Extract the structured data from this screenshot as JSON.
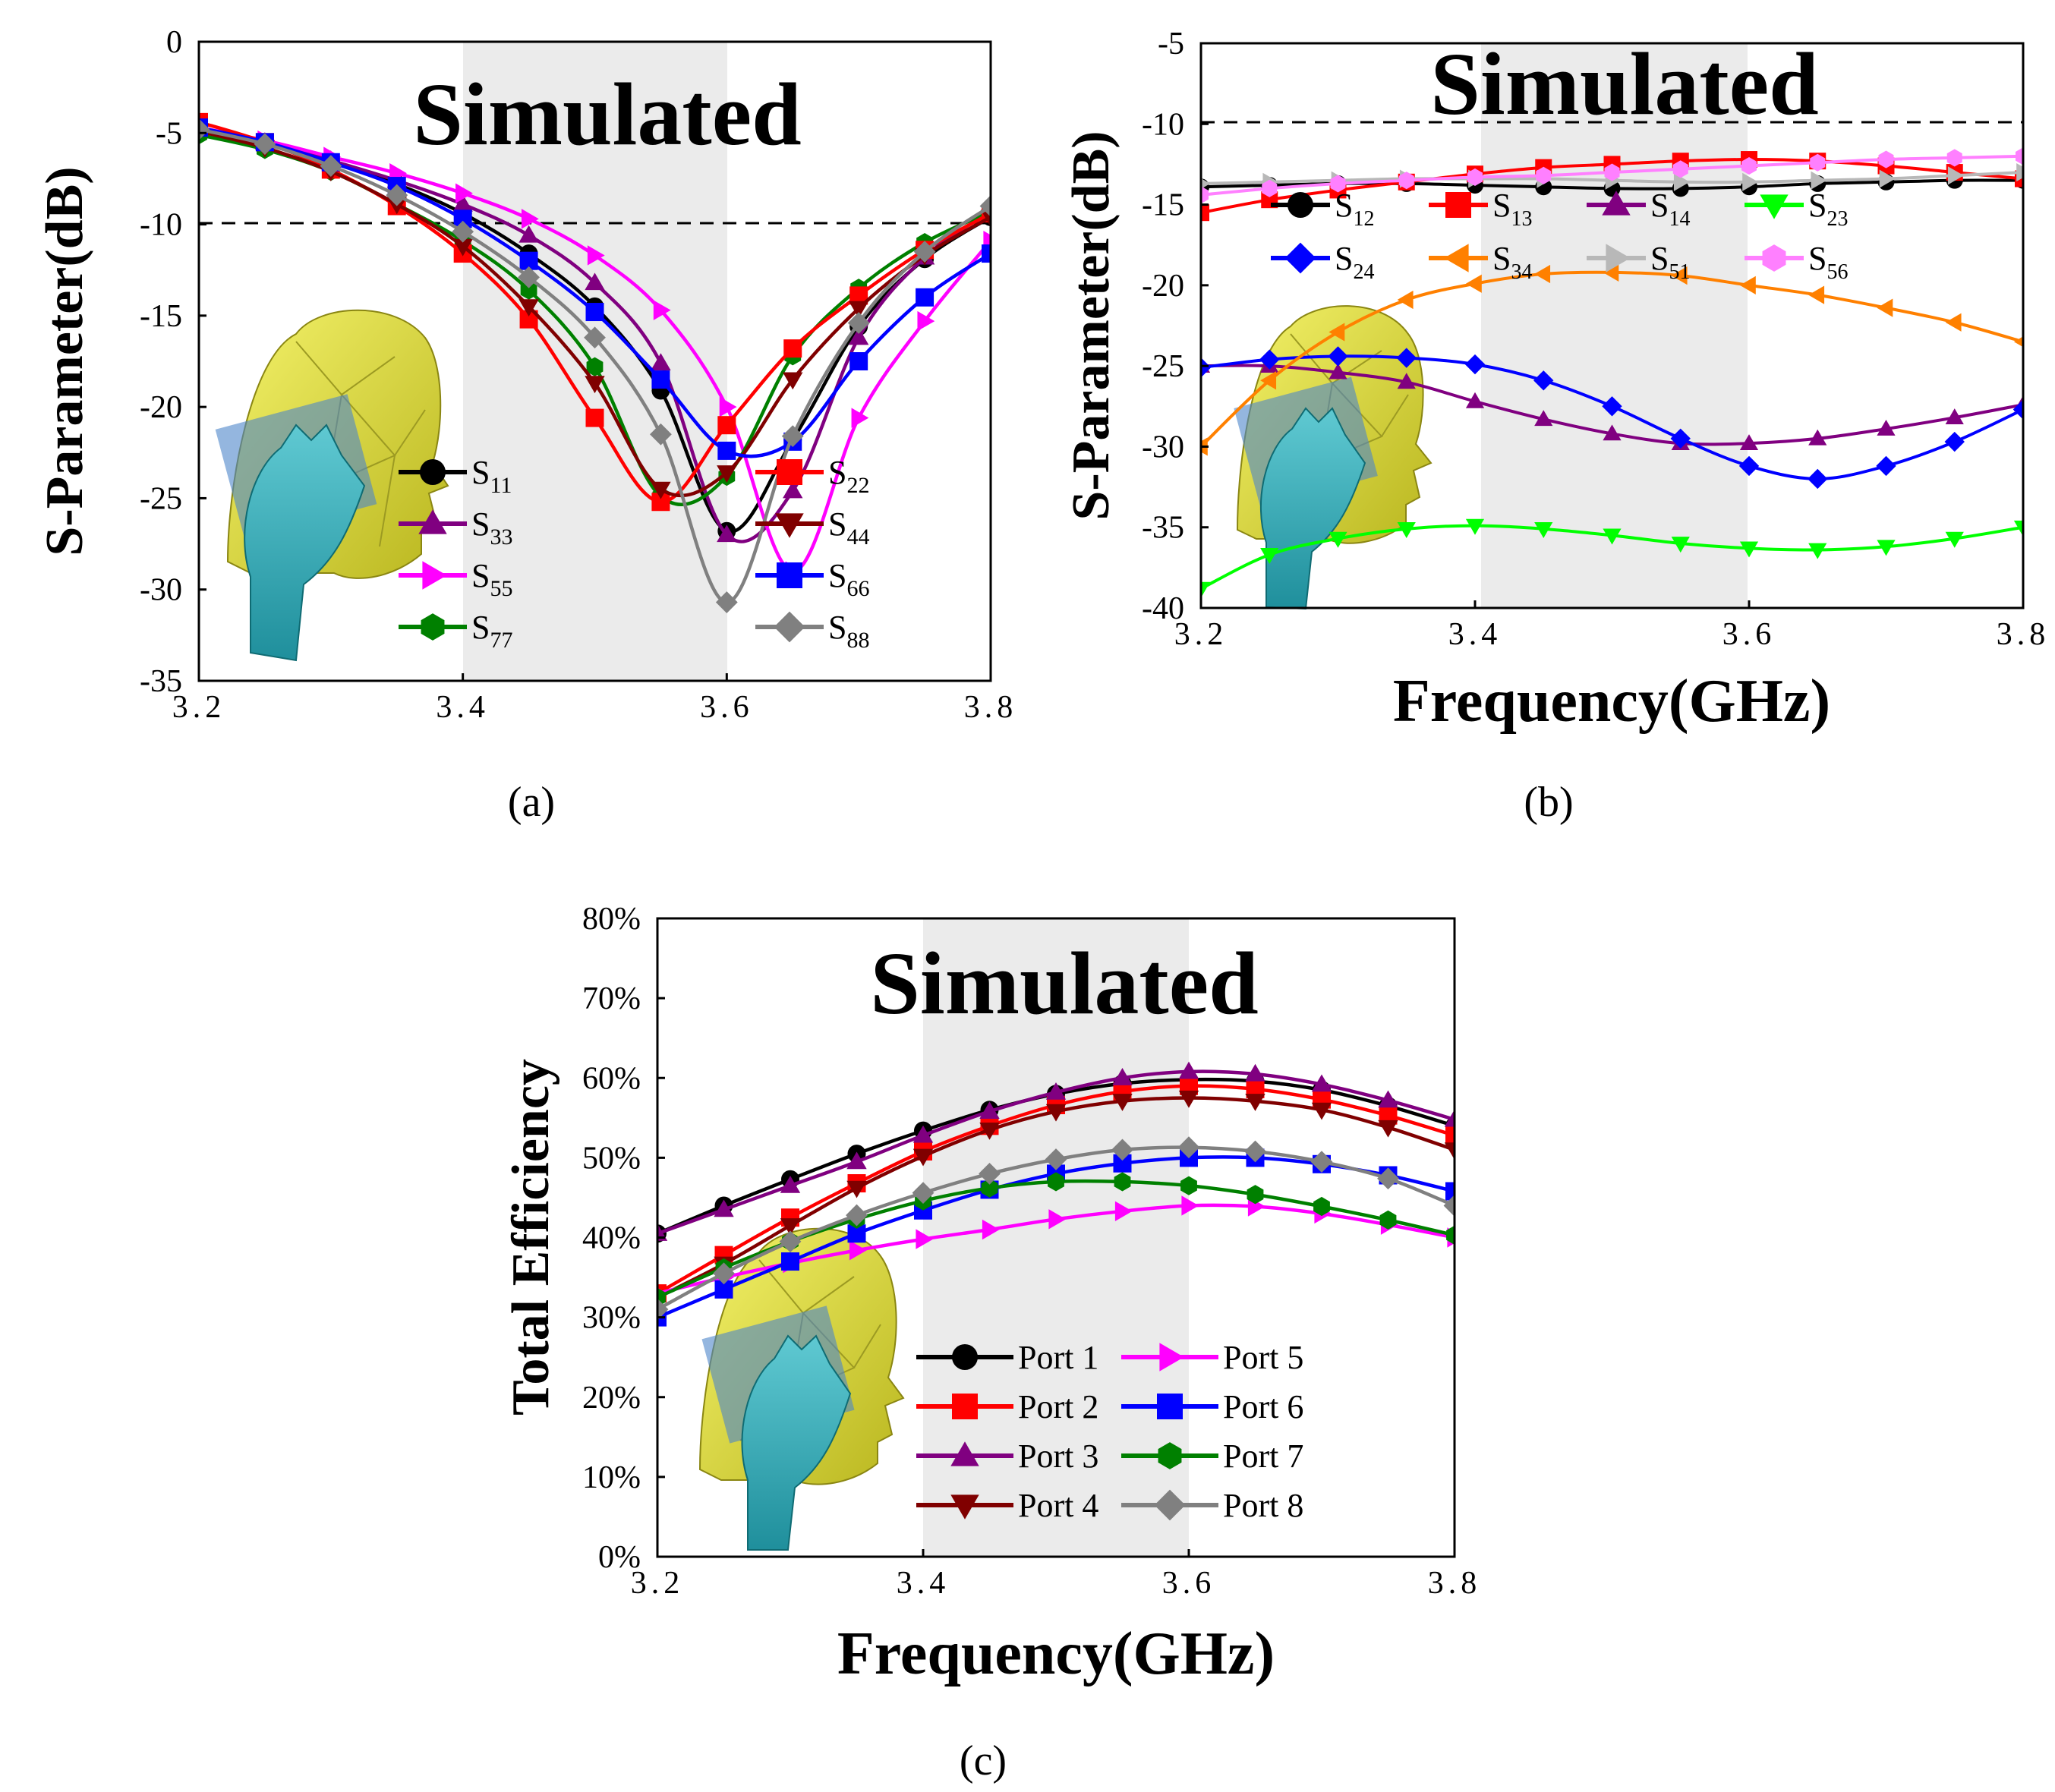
{
  "chart_data": [
    {
      "id": "a",
      "type": "line",
      "title": "Simulated",
      "caption": "(a)",
      "xlabel": "",
      "ylabel": "S-Parameter(dB)",
      "xlim": [
        3.2,
        3.8
      ],
      "ylim": [
        -35,
        0
      ],
      "xticks": [
        3.2,
        3.4,
        3.6,
        3.8
      ],
      "xtick_labels": [
        "3.2",
        "3.4",
        "3.6",
        "3.8"
      ],
      "yticks": [
        0,
        -5,
        -10,
        -15,
        -20,
        -25,
        -30,
        -35
      ],
      "ytick_labels": [
        "0",
        "-5",
        "-10",
        "-15",
        "-20",
        "-25",
        "-30",
        "-35"
      ],
      "band": [
        3.4,
        3.6
      ],
      "threshold": -10,
      "legend_position": "bottom-right",
      "legend_columns": 2,
      "x": [
        3.2,
        3.25,
        3.3,
        3.35,
        3.4,
        3.45,
        3.5,
        3.55,
        3.6,
        3.65,
        3.7,
        3.75,
        3.8
      ],
      "series": [
        {
          "name": "S",
          "sub": "11",
          "color": "#000000",
          "marker": "circle",
          "values": [
            -4.8,
            -5.5,
            -6.6,
            -7.8,
            -9.4,
            -11.6,
            -14.5,
            -19.1,
            -26.8,
            -21.8,
            -15.6,
            -11.9,
            -9.6
          ]
        },
        {
          "name": "S",
          "sub": "33",
          "color": "#800080",
          "marker": "triangle-up",
          "values": [
            -4.9,
            -5.5,
            -6.5,
            -7.6,
            -8.9,
            -10.6,
            -13.2,
            -17.6,
            -27.0,
            -24.6,
            -16.2,
            -11.8,
            -9.3
          ]
        },
        {
          "name": "S",
          "sub": "55",
          "color": "#ff00ff",
          "marker": "triangle-right",
          "values": [
            -4.7,
            -5.4,
            -6.3,
            -7.2,
            -8.3,
            -9.7,
            -11.7,
            -14.7,
            -20.0,
            -29.0,
            -20.6,
            -15.3,
            -10.9
          ]
        },
        {
          "name": "S",
          "sub": "77",
          "color": "#008000",
          "marker": "hexagon",
          "values": [
            -5.1,
            -5.9,
            -7.1,
            -8.9,
            -10.9,
            -13.6,
            -17.8,
            -24.9,
            -23.8,
            -17.2,
            -13.5,
            -11.0,
            -9.3
          ]
        },
        {
          "name": "S",
          "sub": "22",
          "color": "#ff0000",
          "marker": "square",
          "values": [
            -4.4,
            -5.5,
            -7.0,
            -9.0,
            -11.6,
            -15.2,
            -20.6,
            -25.2,
            -21.0,
            -16.8,
            -13.9,
            -11.4,
            -9.4
          ]
        },
        {
          "name": "S",
          "sub": "44",
          "color": "#800000",
          "marker": "triangle-down",
          "values": [
            -4.9,
            -5.8,
            -7.1,
            -8.9,
            -11.2,
            -14.5,
            -18.7,
            -24.5,
            -23.6,
            -18.5,
            -14.6,
            -11.7,
            -9.6
          ]
        },
        {
          "name": "S",
          "sub": "66",
          "color": "#0000ff",
          "marker": "square",
          "values": [
            -4.7,
            -5.5,
            -6.6,
            -7.9,
            -9.7,
            -12.0,
            -14.8,
            -18.5,
            -22.4,
            -21.9,
            -17.5,
            -14.0,
            -11.6
          ]
        },
        {
          "name": "S",
          "sub": "88",
          "color": "#808080",
          "marker": "diamond",
          "values": [
            -4.8,
            -5.6,
            -6.8,
            -8.4,
            -10.4,
            -12.9,
            -16.2,
            -21.5,
            -30.7,
            -21.6,
            -15.4,
            -11.5,
            -9.0
          ]
        }
      ]
    },
    {
      "id": "b",
      "type": "line",
      "title": "Simulated",
      "caption": "(b)",
      "xlabel": "Frequency(GHz)",
      "ylabel": "S-Parameter(dB)",
      "xlim": [
        3.2,
        3.8
      ],
      "ylim": [
        -40,
        -5
      ],
      "xticks": [
        3.2,
        3.4,
        3.6,
        3.8
      ],
      "xtick_labels": [
        "3.2",
        "3.4",
        "3.6",
        "3.8"
      ],
      "yticks": [
        -5,
        -10,
        -15,
        -20,
        -25,
        -30,
        -35,
        -40
      ],
      "ytick_labels": [
        "-5",
        "-10",
        "-15",
        "-20",
        "-25",
        "-30",
        "-35",
        "-40"
      ],
      "band": [
        3.4,
        3.6
      ],
      "threshold": -10,
      "legend_position": "top",
      "legend_columns": 4,
      "x": [
        3.2,
        3.25,
        3.3,
        3.35,
        3.4,
        3.45,
        3.5,
        3.55,
        3.6,
        3.65,
        3.7,
        3.75,
        3.8
      ],
      "series": [
        {
          "name": "S",
          "sub": "12",
          "color": "#000000",
          "marker": "circle",
          "values": [
            -13.9,
            -13.8,
            -13.7,
            -13.7,
            -13.8,
            -13.9,
            -14.0,
            -14.0,
            -13.9,
            -13.7,
            -13.6,
            -13.5,
            -13.5
          ]
        },
        {
          "name": "S",
          "sub": "13",
          "color": "#ff0000",
          "marker": "square",
          "values": [
            -15.5,
            -14.7,
            -14.1,
            -13.6,
            -13.1,
            -12.7,
            -12.5,
            -12.3,
            -12.2,
            -12.3,
            -12.6,
            -13.0,
            -13.4
          ]
        },
        {
          "name": "S",
          "sub": "14",
          "color": "#800080",
          "marker": "triangle-up",
          "values": [
            -25.0,
            -25.0,
            -25.4,
            -26.0,
            -27.2,
            -28.3,
            -29.2,
            -29.8,
            -29.8,
            -29.5,
            -28.9,
            -28.2,
            -27.4
          ]
        },
        {
          "name": "S",
          "sub": "23",
          "color": "#00ff00",
          "marker": "triangle-down",
          "values": [
            -38.8,
            -36.7,
            -35.7,
            -35.1,
            -34.9,
            -35.1,
            -35.5,
            -36.0,
            -36.3,
            -36.4,
            -36.2,
            -35.7,
            -35.0
          ]
        },
        {
          "name": "S",
          "sub": "24",
          "color": "#0000ff",
          "marker": "diamond",
          "values": [
            -25.1,
            -24.6,
            -24.4,
            -24.5,
            -24.9,
            -25.9,
            -27.5,
            -29.5,
            -31.2,
            -32.0,
            -31.2,
            -29.7,
            -27.7
          ]
        },
        {
          "name": "S",
          "sub": "34",
          "color": "#ff8000",
          "marker": "triangle-left",
          "values": [
            -30.0,
            -25.9,
            -22.9,
            -20.9,
            -19.9,
            -19.3,
            -19.2,
            -19.4,
            -20.0,
            -20.6,
            -21.4,
            -22.3,
            -23.5
          ]
        },
        {
          "name": "S",
          "sub": "51",
          "color": "#b8b8b8",
          "marker": "triangle-right",
          "values": [
            -13.7,
            -13.6,
            -13.5,
            -13.4,
            -13.4,
            -13.4,
            -13.5,
            -13.6,
            -13.6,
            -13.5,
            -13.4,
            -13.2,
            -13.0
          ]
        },
        {
          "name": "S",
          "sub": "56",
          "color": "#ff80ff",
          "marker": "hexagon",
          "values": [
            -14.4,
            -14.0,
            -13.7,
            -13.5,
            -13.3,
            -13.2,
            -13.0,
            -12.8,
            -12.6,
            -12.4,
            -12.2,
            -12.1,
            -12.0
          ]
        }
      ]
    },
    {
      "id": "c",
      "type": "line",
      "title": "Simulated",
      "caption": "(c)",
      "xlabel": "Frequency(GHz)",
      "ylabel": "Total Efficiency",
      "xlim": [
        3.2,
        3.8
      ],
      "ylim": [
        0,
        80
      ],
      "xticks": [
        3.2,
        3.4,
        3.6,
        3.8
      ],
      "xtick_labels": [
        "3.2",
        "3.4",
        "3.6",
        "3.8"
      ],
      "yticks": [
        0,
        10,
        20,
        30,
        40,
        50,
        60,
        70,
        80
      ],
      "ytick_labels": [
        "0%",
        "10%",
        "20%",
        "30%",
        "40%",
        "50%",
        "60%",
        "70%",
        "80%"
      ],
      "band": [
        3.4,
        3.6
      ],
      "legend_position": "bottom-right",
      "legend_columns": 2,
      "x": [
        3.2,
        3.25,
        3.3,
        3.35,
        3.4,
        3.45,
        3.5,
        3.55,
        3.6,
        3.65,
        3.7,
        3.75,
        3.8
      ],
      "series": [
        {
          "name": "Port 1",
          "color": "#000000",
          "marker": "circle",
          "values": [
            40.5,
            44.0,
            47.3,
            50.5,
            53.4,
            56.0,
            58.0,
            59.3,
            59.8,
            59.6,
            58.5,
            56.5,
            54.0
          ]
        },
        {
          "name": "Port 2",
          "color": "#ff0000",
          "marker": "square",
          "values": [
            33.0,
            37.8,
            42.5,
            46.8,
            50.8,
            54.0,
            56.6,
            58.3,
            59.0,
            58.6,
            57.3,
            55.3,
            52.8
          ]
        },
        {
          "name": "Port 3",
          "color": "#800080",
          "marker": "triangle-up",
          "values": [
            40.5,
            43.5,
            46.5,
            49.5,
            52.8,
            55.8,
            58.2,
            60.0,
            60.8,
            60.5,
            59.2,
            57.2,
            54.8
          ]
        },
        {
          "name": "Port 4",
          "color": "#800000",
          "marker": "triangle-down",
          "values": [
            32.5,
            36.7,
            41.5,
            46.2,
            50.2,
            53.5,
            55.8,
            57.1,
            57.5,
            57.1,
            56.0,
            53.8,
            51.0
          ]
        },
        {
          "name": "Port 5",
          "color": "#ff00ff",
          "marker": "triangle-right",
          "values": [
            33.0,
            35.0,
            36.8,
            38.4,
            39.8,
            41.0,
            42.3,
            43.3,
            44.0,
            43.9,
            43.0,
            41.6,
            40.0
          ]
        },
        {
          "name": "Port 6",
          "color": "#0000ff",
          "marker": "square",
          "values": [
            30.0,
            33.5,
            37.0,
            40.5,
            43.4,
            46.0,
            48.0,
            49.3,
            50.0,
            50.0,
            49.2,
            47.8,
            45.8
          ]
        },
        {
          "name": "Port 7",
          "color": "#008000",
          "marker": "hexagon",
          "values": [
            32.5,
            36.2,
            39.5,
            42.3,
            44.6,
            46.2,
            47.0,
            47.0,
            46.5,
            45.4,
            43.9,
            42.2,
            40.3
          ]
        },
        {
          "name": "Port 8",
          "color": "#808080",
          "marker": "diamond",
          "values": [
            31.0,
            35.5,
            39.5,
            42.8,
            45.6,
            48.0,
            49.8,
            51.0,
            51.3,
            50.8,
            49.5,
            47.4,
            44.0
          ]
        }
      ]
    }
  ]
}
